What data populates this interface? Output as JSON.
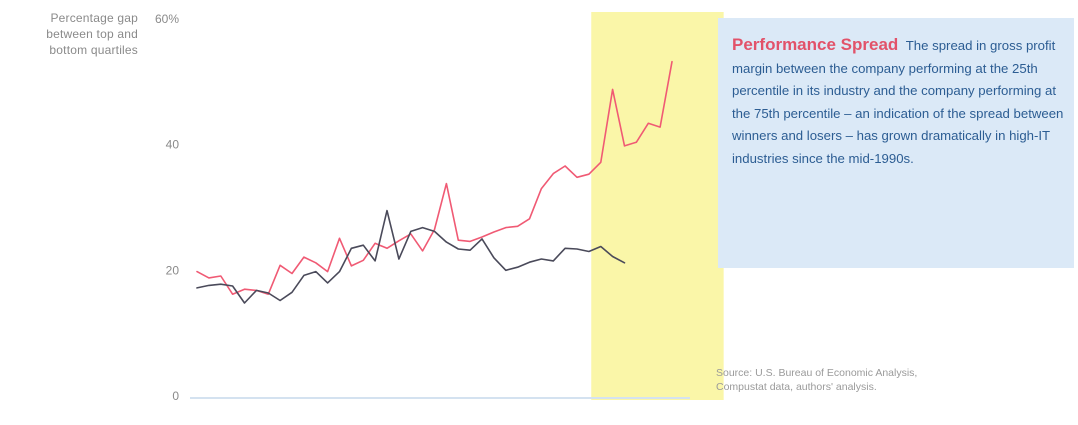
{
  "chart_data": {
    "type": "line",
    "ylabel": "Percentage gap\nbetween top and\nbottom quartiles",
    "ylim": [
      0,
      60
    ],
    "yticks": [
      {
        "value": 60,
        "label": "60%"
      },
      {
        "value": 40,
        "label": "40"
      },
      {
        "value": 20,
        "label": "20"
      },
      {
        "value": 0,
        "label": "0"
      }
    ],
    "highlight_range": [
      33,
      44
    ],
    "series": [
      {
        "color": "#f05a74",
        "values": [
          19.8,
          18.8,
          19.1,
          16.2,
          17.0,
          16.8,
          16.2,
          20.8,
          19.5,
          22.1,
          21.2,
          19.8,
          25.1,
          20.7,
          21.6,
          24.3,
          23.5,
          24.7,
          25.8,
          23.1,
          26.5,
          33.8,
          24.8,
          24.6,
          25.3,
          26.1,
          26.8,
          27.0,
          28.2,
          33.0,
          35.4,
          36.6,
          34.8,
          35.3,
          37.2,
          48.8,
          39.8,
          40.4,
          43.4,
          42.8,
          53.2
        ]
      },
      {
        "color": "#4a4a5a",
        "values": [
          17.2,
          17.6,
          17.8,
          17.5,
          14.8,
          16.8,
          16.4,
          15.2,
          16.5,
          19.2,
          19.8,
          18.0,
          19.8,
          23.5,
          24.0,
          21.5,
          29.5,
          21.8,
          26.2,
          26.8,
          26.2,
          24.5,
          23.4,
          23.2,
          25.0,
          22.0,
          20.0,
          20.5,
          21.3,
          21.8,
          21.5,
          23.5,
          23.4,
          23.0,
          23.8,
          22.2,
          21.2
        ]
      }
    ]
  },
  "callout": {
    "title": "Performance Spread",
    "text": "The spread in gross profit margin between the company performing at the 25th percentile in its industry and the company performing at the 75th percentile – an indication of the spread between winners and losers – has grown dramatically in high-IT industries since the mid-1990s."
  },
  "source": {
    "line1": "Source: U.S. Bureau of Economic Analysis,",
    "line2": "Compustat data, authors' analysis."
  }
}
